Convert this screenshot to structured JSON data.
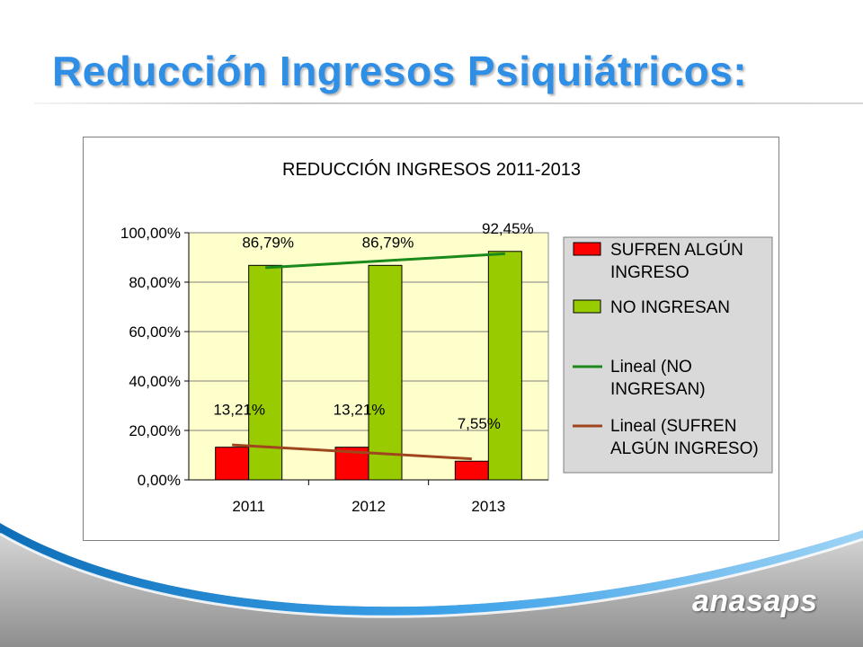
{
  "slide": {
    "title": "Reducción Ingresos Psiquiátricos:",
    "brand": "anasaps"
  },
  "colors": {
    "title": "#2f8fe6",
    "series_red": "#ff0000",
    "series_green": "#99cc00",
    "trend_green": "#1a8a1a",
    "trend_brown": "#a0461e",
    "plot_bg": "#ffffcc",
    "legend_bg": "#d9d9d9"
  },
  "chart_data": {
    "type": "bar",
    "title": "REDUCCIÓN INGRESOS 2011-2013",
    "categories": [
      "2011",
      "2012",
      "2013"
    ],
    "series": [
      {
        "name": "SUFREN ALGÚN INGRESO",
        "values": [
          13.21,
          13.21,
          7.55
        ],
        "labels": [
          "13,21%",
          "13,21%",
          "7,55%"
        ]
      },
      {
        "name": "NO INGRESAN",
        "values": [
          86.79,
          86.79,
          92.45
        ],
        "labels": [
          "86,79%",
          "86,79%",
          "92,45%"
        ]
      }
    ],
    "trendlines": [
      {
        "name": "Lineal (NO INGRESAN)",
        "of_series": "NO INGRESAN",
        "type": "linear"
      },
      {
        "name": "Lineal (SUFREN ALGÚN INGRESO)",
        "of_series": "SUFREN ALGÚN INGRESO",
        "type": "linear"
      }
    ],
    "legend": [
      {
        "label": "SUFREN ALGÚN INGRESO",
        "marker": "box",
        "color": "#ff0000"
      },
      {
        "label": "NO INGRESAN",
        "marker": "box",
        "color": "#99cc00"
      },
      {
        "label": "Lineal (NO INGRESAN)",
        "marker": "line",
        "color": "#1a8a1a"
      },
      {
        "label": "Lineal (SUFREN ALGÚN INGRESO)",
        "marker": "line",
        "color": "#a0461e"
      }
    ],
    "yticks": [
      "0,00%",
      "20,00%",
      "40,00%",
      "60,00%",
      "80,00%",
      "100,00%"
    ],
    "ylim": [
      0,
      100
    ],
    "grid": true,
    "legend_position": "right",
    "xlabel": "",
    "ylabel": ""
  }
}
